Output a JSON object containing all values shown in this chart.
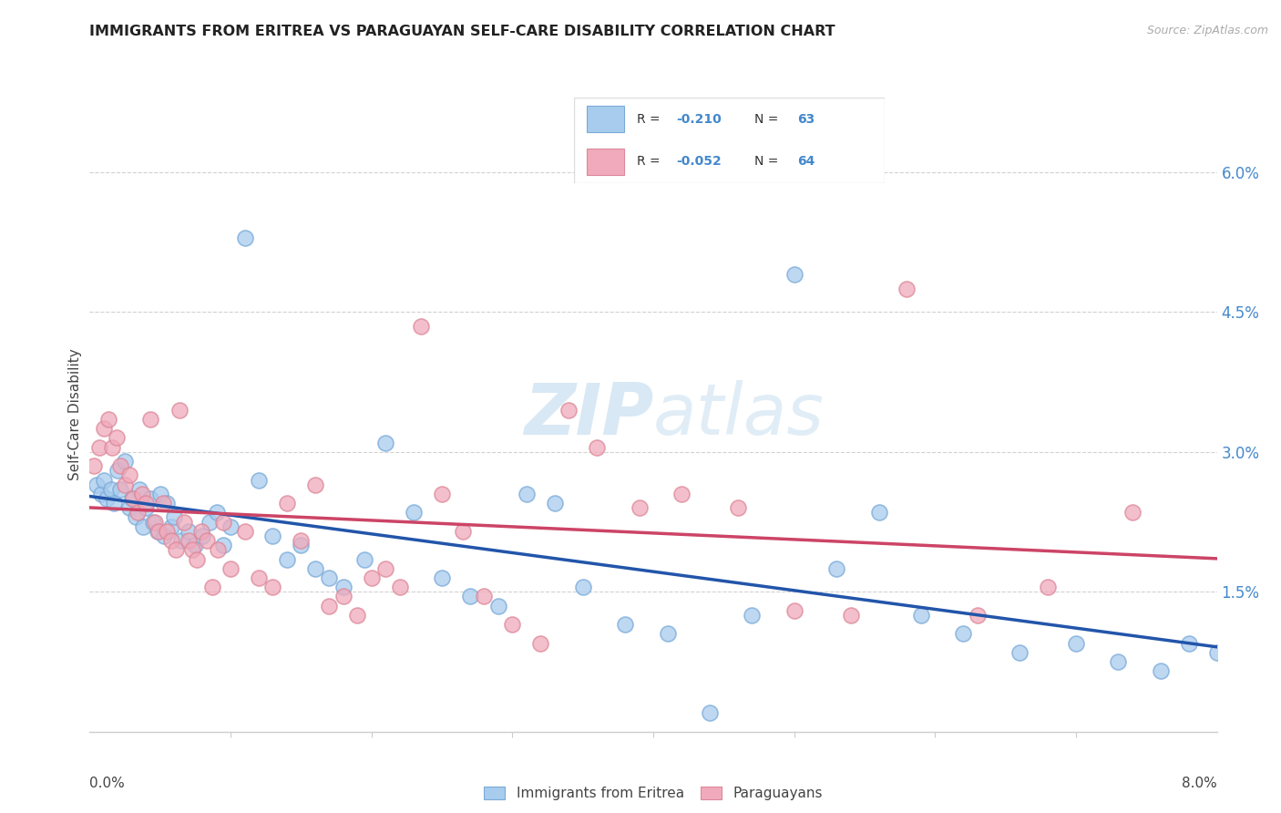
{
  "title": "IMMIGRANTS FROM ERITREA VS PARAGUAYAN SELF-CARE DISABILITY CORRELATION CHART",
  "source": "Source: ZipAtlas.com",
  "ylabel": "Self-Care Disability",
  "xmin": 0.0,
  "xmax": 8.0,
  "ymin": 0.0,
  "ymax": 6.8,
  "yticks": [
    1.5,
    3.0,
    4.5,
    6.0
  ],
  "ytick_labels": [
    "1.5%",
    "3.0%",
    "4.5%",
    "6.0%"
  ],
  "legend_label1": "Immigrants from Eritrea",
  "legend_label2": "Paraguayans",
  "blue_fill": "#A8CCEE",
  "blue_edge": "#7AAAD8",
  "pink_fill": "#F0AABB",
  "pink_edge": "#DD8899",
  "blue_line_color": "#2255AA",
  "pink_line_color": "#CC4466",
  "grid_color": "#CCCCCC",
  "right_tick_color": "#4488CC",
  "watermark_color": "#C8DFF0",
  "blue_x": [
    0.05,
    0.08,
    0.1,
    0.12,
    0.15,
    0.17,
    0.2,
    0.22,
    0.25,
    0.28,
    0.3,
    0.33,
    0.35,
    0.38,
    0.4,
    0.43,
    0.45,
    0.48,
    0.5,
    0.53,
    0.55,
    0.58,
    0.6,
    0.65,
    0.7,
    0.75,
    0.8,
    0.85,
    0.9,
    0.95,
    1.0,
    1.1,
    1.2,
    1.3,
    1.4,
    1.5,
    1.6,
    1.7,
    1.8,
    1.95,
    2.1,
    2.3,
    2.5,
    2.7,
    2.9,
    3.1,
    3.3,
    3.5,
    3.8,
    4.1,
    4.4,
    4.7,
    5.0,
    5.3,
    5.6,
    5.9,
    6.2,
    6.6,
    7.0,
    7.3,
    7.6,
    7.8,
    8.0
  ],
  "blue_y": [
    2.65,
    2.55,
    2.7,
    2.5,
    2.6,
    2.45,
    2.8,
    2.6,
    2.9,
    2.4,
    2.5,
    2.3,
    2.6,
    2.2,
    2.4,
    2.5,
    2.25,
    2.15,
    2.55,
    2.1,
    2.45,
    2.2,
    2.3,
    2.05,
    2.15,
    2.0,
    2.1,
    2.25,
    2.35,
    2.0,
    2.2,
    5.3,
    2.7,
    2.1,
    1.85,
    2.0,
    1.75,
    1.65,
    1.55,
    1.85,
    3.1,
    2.35,
    1.65,
    1.45,
    1.35,
    2.55,
    2.45,
    1.55,
    1.15,
    1.05,
    0.2,
    1.25,
    4.9,
    1.75,
    2.35,
    1.25,
    1.05,
    0.85,
    0.95,
    0.75,
    0.65,
    0.95,
    0.85
  ],
  "pink_x": [
    0.03,
    0.07,
    0.1,
    0.13,
    0.16,
    0.19,
    0.22,
    0.25,
    0.28,
    0.31,
    0.34,
    0.37,
    0.4,
    0.43,
    0.46,
    0.49,
    0.52,
    0.55,
    0.58,
    0.61,
    0.64,
    0.67,
    0.7,
    0.73,
    0.76,
    0.79,
    0.83,
    0.87,
    0.91,
    0.95,
    1.0,
    1.1,
    1.2,
    1.3,
    1.4,
    1.5,
    1.6,
    1.7,
    1.8,
    1.9,
    2.0,
    2.1,
    2.2,
    2.35,
    2.5,
    2.65,
    2.8,
    3.0,
    3.2,
    3.4,
    3.6,
    3.9,
    4.2,
    4.6,
    5.0,
    5.4,
    5.8,
    6.3,
    6.8,
    7.4
  ],
  "pink_y": [
    2.85,
    3.05,
    3.25,
    3.35,
    3.05,
    3.15,
    2.85,
    2.65,
    2.75,
    2.5,
    2.35,
    2.55,
    2.45,
    3.35,
    2.25,
    2.15,
    2.45,
    2.15,
    2.05,
    1.95,
    3.45,
    2.25,
    2.05,
    1.95,
    1.85,
    2.15,
    2.05,
    1.55,
    1.95,
    2.25,
    1.75,
    2.15,
    1.65,
    1.55,
    2.45,
    2.05,
    2.65,
    1.35,
    1.45,
    1.25,
    1.65,
    1.75,
    1.55,
    4.35,
    2.55,
    2.15,
    1.45,
    1.15,
    0.95,
    3.45,
    3.05,
    2.4,
    2.55,
    2.4,
    1.3,
    1.25,
    4.75,
    1.25,
    1.55,
    2.35
  ]
}
